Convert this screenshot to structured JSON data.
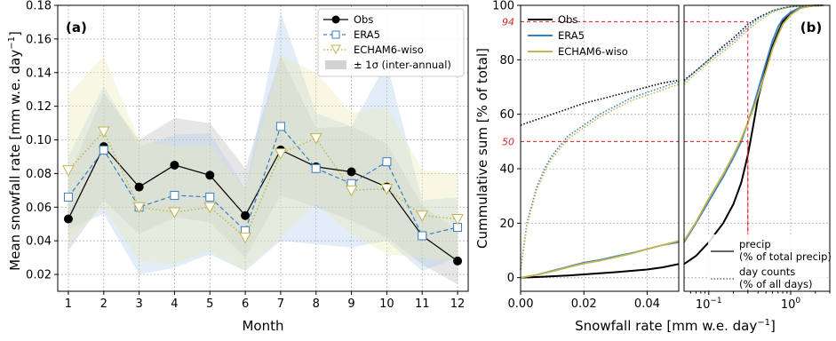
{
  "colors": {
    "obs": "#000000",
    "era5": "#3a7fc0",
    "echam": "#c2b54a",
    "band_obs": "#b8b8b8",
    "band_era5": "#aecbeb",
    "band_echam": "#ece7b2",
    "ref_lines": "#e8141a"
  },
  "chart_data": [
    {
      "type": "line",
      "panel_label": "(a)",
      "xlabel": "Month",
      "ylabel": "Mean snowfall rate [mm w.e. day$^{-1}$]",
      "ylabel_display": "Mean snowfall rate [mm w.e. day",
      "ylabel_sup": "−1",
      "ylabel_close": "]",
      "xlim": [
        0.7,
        12.3
      ],
      "ylim": [
        0.01,
        0.18
      ],
      "xticks": [
        1,
        2,
        3,
        4,
        5,
        6,
        7,
        8,
        9,
        10,
        11,
        12
      ],
      "yticks": [
        0.02,
        0.04,
        0.06,
        0.08,
        0.1,
        0.12,
        0.14,
        0.16,
        0.18
      ],
      "ytick_labels": [
        "0.02",
        "0.04",
        "0.06",
        "0.08",
        "0.10",
        "0.12",
        "0.14",
        "0.16",
        "0.18"
      ],
      "grid": true,
      "legend_position": "top-right",
      "x": [
        1,
        2,
        3,
        4,
        5,
        6,
        7,
        8,
        9,
        10,
        11,
        12
      ],
      "series": [
        {
          "name": "Obs",
          "key": "obs",
          "marker": "circle",
          "linestyle": "solid",
          "values": [
            0.053,
            0.096,
            0.072,
            0.085,
            0.079,
            0.055,
            0.094,
            0.084,
            0.081,
            0.072,
            0.043,
            0.028
          ],
          "band_lower": [
            0.034,
            0.064,
            0.044,
            0.054,
            0.051,
            0.03,
            0.067,
            0.06,
            0.052,
            0.042,
            0.026,
            0.014
          ],
          "band_upper": [
            0.077,
            0.128,
            0.1,
            0.113,
            0.11,
            0.083,
            0.15,
            0.107,
            0.108,
            0.098,
            0.061,
            0.046
          ]
        },
        {
          "name": "ERA5",
          "key": "era5",
          "marker": "square",
          "linestyle": "dashed",
          "values": [
            0.066,
            0.094,
            0.06,
            0.067,
            0.066,
            0.046,
            0.108,
            0.083,
            0.074,
            0.087,
            0.043,
            0.048
          ],
          "band_lower": [
            0.047,
            0.056,
            0.02,
            0.024,
            0.032,
            0.022,
            0.04,
            0.038,
            0.036,
            0.04,
            0.022,
            0.03
          ],
          "band_upper": [
            0.09,
            0.132,
            0.096,
            0.103,
            0.104,
            0.071,
            0.176,
            0.116,
            0.108,
            0.146,
            0.064,
            0.066
          ]
        },
        {
          "name": "ECHAM6-wiso",
          "key": "echam",
          "marker": "triangle-down",
          "linestyle": "dotted",
          "values": [
            0.082,
            0.105,
            0.06,
            0.057,
            0.06,
            0.042,
            0.092,
            0.101,
            0.07,
            0.071,
            0.055,
            0.053
          ],
          "band_lower": [
            0.041,
            0.06,
            0.028,
            0.026,
            0.034,
            0.022,
            0.042,
            0.062,
            0.044,
            0.032,
            0.03,
            0.028
          ],
          "band_upper": [
            0.127,
            0.15,
            0.1,
            0.096,
            0.097,
            0.07,
            0.15,
            0.14,
            0.116,
            0.12,
            0.082,
            0.08
          ]
        }
      ],
      "band_legend": "± 1σ (inter-annual)"
    },
    {
      "type": "line",
      "panel_label": "(b)",
      "xlabel": "Snowfall rate [mm w.e. day$^{-1}$]",
      "xlabel_display": "Snowfall rate [mm w.e. day",
      "xlabel_sup": "−1",
      "xlabel_close": "]",
      "ylabel": "Cummulative sum [% of total]",
      "ylim": [
        -5,
        100
      ],
      "yticks": [
        0,
        20,
        40,
        60,
        80,
        100
      ],
      "ytick_labels": [
        "0",
        "20",
        "40",
        "60",
        "80",
        "100"
      ],
      "grid": true,
      "legend_position": "top-left",
      "left_subpanel": {
        "scale": "linear",
        "xlim": [
          0,
          0.05
        ],
        "xticks": [
          0.0,
          0.02,
          0.04
        ],
        "xtick_labels": [
          "0.00",
          "0.02",
          "0.04"
        ]
      },
      "right_subpanel": {
        "scale": "log",
        "xlim": [
          0.05,
          3
        ],
        "xticks": [
          0.1,
          1
        ],
        "xtick_labels": [
          "10$^{-1}$",
          "10$^{0}$"
        ],
        "xtick_display": [
          {
            "base": "10",
            "exp": "−1"
          },
          {
            "base": "10",
            "exp": "0"
          }
        ]
      },
      "reference_lines": [
        {
          "y": 94,
          "label": "94",
          "x": 0.3
        },
        {
          "y": 50,
          "label": "50",
          "x": 0.3
        }
      ],
      "legend_top": [
        "Obs",
        "ERA5",
        "ECHAM6-wiso"
      ],
      "legend_bottom": [
        {
          "label": "precip",
          "sublabel": "(% of total precip)",
          "style": "solid"
        },
        {
          "label": "day counts",
          "sublabel": "(% of all days)",
          "style": "dotted"
        }
      ],
      "series": [
        {
          "name": "Obs",
          "kind": "precip",
          "key": "obs",
          "x": [
            0,
            0.005,
            0.01,
            0.015,
            0.02,
            0.025,
            0.03,
            0.035,
            0.04,
            0.045,
            0.05,
            0.07,
            0.1,
            0.15,
            0.2,
            0.25,
            0.3,
            0.35,
            0.4,
            0.5,
            0.6,
            0.7,
            0.8,
            1.0,
            1.3,
            1.6,
            2.0,
            2.5
          ],
          "y": [
            0,
            0.2,
            0.5,
            0.8,
            1.2,
            1.6,
            2,
            2.5,
            3,
            3.8,
            5,
            8,
            13,
            20,
            27,
            35,
            45,
            56,
            66,
            77,
            85,
            90,
            94,
            97,
            99,
            99.6,
            99.9,
            100
          ]
        },
        {
          "name": "ERA5",
          "kind": "precip",
          "key": "era5",
          "x": [
            0,
            0.005,
            0.01,
            0.015,
            0.02,
            0.025,
            0.03,
            0.035,
            0.04,
            0.045,
            0.05,
            0.07,
            0.1,
            0.15,
            0.2,
            0.25,
            0.3,
            0.35,
            0.4,
            0.5,
            0.6,
            0.7,
            0.8,
            1.0,
            1.3,
            1.6,
            2.0,
            2.5
          ],
          "y": [
            0,
            1,
            2.5,
            4,
            5.5,
            6.5,
            7.8,
            9,
            10.5,
            12,
            13,
            20,
            28,
            37,
            44,
            50,
            57,
            63,
            69,
            79,
            87,
            92,
            95,
            97.5,
            99.2,
            99.7,
            99.9,
            100
          ]
        },
        {
          "name": "ECHAM6-wiso",
          "kind": "precip",
          "key": "echam",
          "x": [
            0,
            0.005,
            0.01,
            0.015,
            0.02,
            0.025,
            0.03,
            0.035,
            0.04,
            0.045,
            0.05,
            0.07,
            0.1,
            0.15,
            0.2,
            0.25,
            0.3,
            0.35,
            0.4,
            0.5,
            0.6,
            0.7,
            0.8,
            1.0,
            1.3,
            1.6,
            2.0,
            2.5
          ],
          "y": [
            0,
            1,
            2.3,
            3.8,
            5.2,
            6.2,
            7.5,
            8.8,
            10.5,
            12,
            13.5,
            20.5,
            29,
            38,
            45,
            51,
            57,
            62,
            67,
            76,
            84,
            89,
            93,
            96.5,
            98.8,
            99.5,
            99.9,
            100
          ]
        },
        {
          "name": "Obs",
          "kind": "days",
          "key": "obs",
          "x": [
            0,
            0.005,
            0.01,
            0.015,
            0.02,
            0.025,
            0.03,
            0.035,
            0.04,
            0.045,
            0.05,
            0.07,
            0.1,
            0.15,
            0.2,
            0.3,
            0.4,
            0.6,
            0.8,
            1.0,
            1.5,
            2.5
          ],
          "y": [
            56,
            58,
            60,
            62,
            64,
            65.5,
            67,
            68.5,
            70,
            71.5,
            72.5,
            76,
            80,
            85,
            88,
            93,
            95.5,
            98,
            99,
            99.5,
            99.9,
            100
          ]
        },
        {
          "name": "ERA5",
          "kind": "days",
          "key": "era5",
          "x": [
            0,
            0.002,
            0.005,
            0.008,
            0.01,
            0.015,
            0.02,
            0.025,
            0.03,
            0.035,
            0.04,
            0.045,
            0.05,
            0.07,
            0.1,
            0.15,
            0.2,
            0.3,
            0.4,
            0.6,
            0.8,
            1.0,
            1.5,
            2.5
          ],
          "y": [
            3,
            20,
            33,
            41,
            45,
            52,
            56,
            60,
            63,
            66,
            68,
            70,
            72,
            76,
            80,
            84,
            87,
            92,
            95,
            98,
            99,
            99.5,
            99.9,
            100
          ]
        },
        {
          "name": "ECHAM6-wiso",
          "kind": "days",
          "key": "echam",
          "x": [
            0,
            0.002,
            0.005,
            0.008,
            0.01,
            0.015,
            0.02,
            0.025,
            0.03,
            0.035,
            0.04,
            0.045,
            0.05,
            0.07,
            0.1,
            0.15,
            0.2,
            0.3,
            0.4,
            0.6,
            0.8,
            1.0,
            1.5,
            2.5
          ],
          "y": [
            3,
            19,
            32,
            40,
            44,
            51,
            55,
            59,
            62,
            65,
            67,
            69,
            71,
            75,
            79,
            83,
            86,
            91,
            94,
            97.5,
            98.8,
            99.4,
            99.9,
            100
          ]
        }
      ]
    }
  ]
}
